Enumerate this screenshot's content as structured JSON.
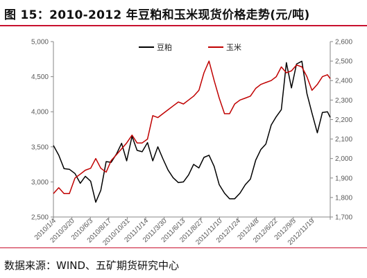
{
  "title": "图 15：2010-2012 年豆粕和玉米现货价格走势(元/吨)",
  "source": "数据来源：WIND、五矿期货研究中心",
  "colors": {
    "soybean_meal": "#000000",
    "corn": "#c00000",
    "accent": "#c8102e"
  },
  "chart_data": {
    "type": "line",
    "title": "图 15：2010-2012 年豆粕和玉米现货价格走势(元/吨)",
    "legend_placement": "top",
    "grid": false,
    "x_tick_labels": [
      "2010/1/4",
      "2010/3/20",
      "2010/6/3",
      "2010/8/17",
      "2010/10/31",
      "2011/1/14",
      "2011/3/30",
      "2011/6/13",
      "2011/8/27",
      "2011/11/10",
      "2012/1/24",
      "2012/4/8",
      "2012/6/22",
      "2012/9/5",
      "2012/11/19"
    ],
    "y_left": {
      "min": 2500,
      "max": 5000,
      "step": 500,
      "tick_labels": [
        "2,500",
        "3,000",
        "3,500",
        "4,000",
        "4,500",
        "5,000"
      ]
    },
    "y_right": {
      "min": 1700,
      "max": 2600,
      "step": 100,
      "tick_labels": [
        "1,700",
        "1,800",
        "1,900",
        "2,000",
        "2,100",
        "2,200",
        "2,300",
        "2,400",
        "2,500",
        "2,600"
      ]
    },
    "series": [
      {
        "name": "豆粕",
        "axis": "left",
        "x": [
          "2010/1/4",
          "2010/1/25",
          "2010/2/15",
          "2010/3/8",
          "2010/3/30",
          "2010/4/20",
          "2010/5/10",
          "2010/5/31",
          "2010/6/20",
          "2010/7/10",
          "2010/7/31",
          "2010/8/20",
          "2010/9/10",
          "2010/9/30",
          "2010/10/20",
          "2010/11/10",
          "2010/11/30",
          "2010/12/20",
          "2011/1/10",
          "2011/1/31",
          "2011/2/20",
          "2011/3/12",
          "2011/4/1",
          "2011/4/21",
          "2011/5/12",
          "2011/6/1",
          "2011/6/21",
          "2011/7/11",
          "2011/8/1",
          "2011/8/21",
          "2011/9/10",
          "2011/9/30",
          "2011/10/20",
          "2011/11/10",
          "2011/11/30",
          "2011/12/20",
          "2012/1/10",
          "2012/1/31",
          "2012/2/20",
          "2012/3/12",
          "2012/4/1",
          "2012/4/21",
          "2012/5/12",
          "2012/6/1",
          "2012/6/21",
          "2012/7/11",
          "2012/7/31",
          "2012/8/20",
          "2012/9/10",
          "2012/9/30",
          "2012/10/20",
          "2012/11/10",
          "2012/11/30",
          "2012/12/20",
          "2012/12/31"
        ],
        "values": [
          3520,
          3380,
          3190,
          3180,
          3120,
          2980,
          3080,
          3010,
          2710,
          2880,
          3290,
          3280,
          3400,
          3550,
          3300,
          3650,
          3450,
          3430,
          3560,
          3300,
          3500,
          3330,
          3170,
          3060,
          2990,
          3000,
          3100,
          3250,
          3200,
          3350,
          3380,
          3220,
          2960,
          2840,
          2760,
          2760,
          2840,
          2960,
          3040,
          3310,
          3460,
          3540,
          3810,
          3930,
          4030,
          4700,
          4340,
          4680,
          4720,
          4260,
          3980,
          3700,
          3990,
          4000,
          3920
        ]
      },
      {
        "name": "玉米",
        "axis": "right",
        "x": [
          "2010/1/4",
          "2010/1/25",
          "2010/2/15",
          "2010/3/8",
          "2010/3/30",
          "2010/4/20",
          "2010/5/10",
          "2010/5/31",
          "2010/6/20",
          "2010/7/10",
          "2010/7/31",
          "2010/8/20",
          "2010/9/10",
          "2010/9/30",
          "2010/10/20",
          "2010/11/10",
          "2010/11/30",
          "2010/12/20",
          "2011/1/10",
          "2011/1/31",
          "2011/2/20",
          "2011/3/12",
          "2011/4/1",
          "2011/4/21",
          "2011/5/12",
          "2011/6/1",
          "2011/6/21",
          "2011/7/11",
          "2011/8/1",
          "2011/8/21",
          "2011/9/10",
          "2011/9/30",
          "2011/10/20",
          "2011/11/10",
          "2011/11/30",
          "2011/12/20",
          "2012/1/10",
          "2012/1/31",
          "2012/2/20",
          "2012/3/12",
          "2012/4/1",
          "2012/4/21",
          "2012/5/12",
          "2012/6/1",
          "2012/6/21",
          "2012/7/11",
          "2012/7/31",
          "2012/8/20",
          "2012/9/10",
          "2012/9/30",
          "2012/10/20",
          "2012/11/10",
          "2012/11/30",
          "2012/12/20",
          "2012/12/31"
        ],
        "values": [
          1820,
          1850,
          1820,
          1820,
          1900,
          1920,
          1940,
          1950,
          2000,
          1950,
          1930,
          1990,
          2020,
          2050,
          2080,
          2120,
          2080,
          2080,
          2100,
          2220,
          2210,
          2230,
          2250,
          2270,
          2290,
          2280,
          2300,
          2320,
          2350,
          2440,
          2500,
          2400,
          2310,
          2230,
          2230,
          2280,
          2300,
          2310,
          2320,
          2360,
          2380,
          2390,
          2400,
          2420,
          2470,
          2440,
          2450,
          2480,
          2470,
          2420,
          2350,
          2380,
          2420,
          2430,
          2410
        ]
      }
    ]
  }
}
